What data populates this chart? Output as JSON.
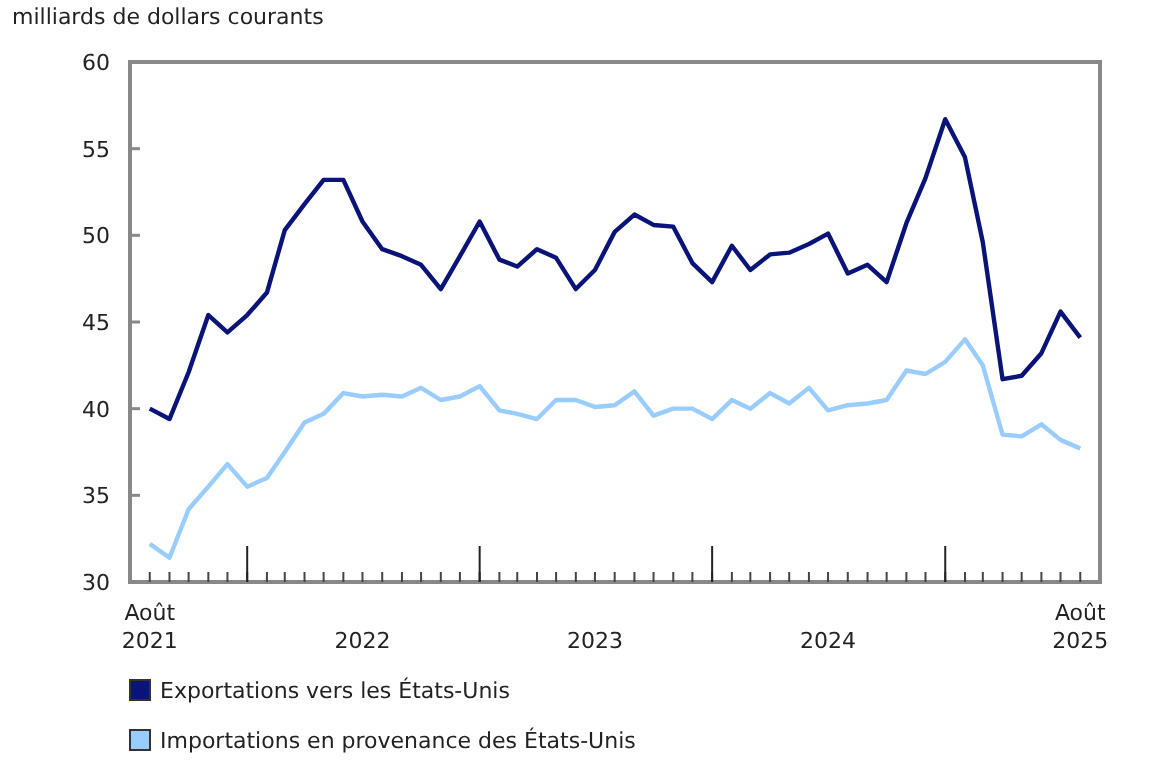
{
  "chart_data": {
    "type": "line",
    "ylabel": "milliards de dollars courants",
    "x": [
      "2021-08",
      "2021-09",
      "2021-10",
      "2021-11",
      "2021-12",
      "2022-01",
      "2022-02",
      "2022-03",
      "2022-04",
      "2022-05",
      "2022-06",
      "2022-07",
      "2022-08",
      "2022-09",
      "2022-10",
      "2022-11",
      "2022-12",
      "2023-01",
      "2023-02",
      "2023-03",
      "2023-04",
      "2023-05",
      "2023-06",
      "2023-07",
      "2023-08",
      "2023-09",
      "2023-10",
      "2023-11",
      "2023-12",
      "2024-01",
      "2024-02",
      "2024-03",
      "2024-04",
      "2024-05",
      "2024-06",
      "2024-07",
      "2024-08",
      "2024-09",
      "2024-10",
      "2024-11",
      "2024-12",
      "2025-01",
      "2025-02",
      "2025-03",
      "2025-04",
      "2025-05",
      "2025-06",
      "2025-07",
      "2025-08"
    ],
    "series": [
      {
        "name": "Exportations vers les États-Unis",
        "color": "#0a1478",
        "values": [
          40.0,
          39.4,
          42.1,
          45.4,
          44.4,
          45.4,
          46.7,
          50.3,
          51.8,
          53.2,
          53.2,
          50.8,
          49.2,
          48.8,
          48.3,
          46.9,
          48.8,
          50.8,
          48.6,
          48.2,
          49.2,
          48.7,
          46.9,
          48.0,
          50.2,
          51.2,
          50.6,
          50.5,
          48.4,
          47.3,
          49.4,
          48.0,
          48.9,
          49.0,
          49.5,
          50.1,
          47.8,
          48.3,
          47.3,
          50.7,
          53.3,
          56.7,
          54.5,
          49.6,
          41.7,
          41.9,
          43.2,
          45.6,
          44.1
        ]
      },
      {
        "name": "Importations en provenance des États-Unis",
        "color": "#99ccff",
        "values": [
          32.2,
          31.4,
          34.2,
          35.5,
          36.8,
          35.5,
          36.0,
          37.5,
          39.2,
          39.7,
          40.9,
          40.7,
          40.8,
          40.7,
          41.2,
          40.5,
          40.7,
          41.3,
          39.9,
          39.7,
          39.4,
          40.5,
          40.5,
          40.1,
          40.2,
          41.0,
          39.6,
          40.0,
          40.0,
          39.4,
          40.5,
          40.0,
          40.9,
          40.3,
          41.2,
          39.9,
          40.2,
          40.3,
          40.5,
          42.2,
          42.0,
          42.7,
          44.0,
          42.5,
          38.5,
          38.4,
          39.1,
          38.2,
          37.7
        ]
      }
    ],
    "xlim": [
      "2021-07",
      "2025-09"
    ],
    "xticks": [
      {
        "value": "2021-08",
        "label": "Août 2021"
      },
      {
        "value": "2022-01",
        "label": null
      },
      {
        "value": "2022-07",
        "label": "2022"
      },
      {
        "value": "2023-01",
        "label": null
      },
      {
        "value": "2023-07",
        "label": "2023"
      },
      {
        "value": "2024-01",
        "label": null
      },
      {
        "value": "2024-07",
        "label": "2024"
      },
      {
        "value": "2025-01",
        "label": null
      },
      {
        "value": "2025-08",
        "label": "Août 2025"
      }
    ],
    "ylim": [
      30,
      60
    ],
    "yticks": [
      30,
      35,
      40,
      45,
      50,
      55,
      60
    ],
    "grid": false,
    "legend": "bottom",
    "marker": "none",
    "line_style": "solid"
  }
}
